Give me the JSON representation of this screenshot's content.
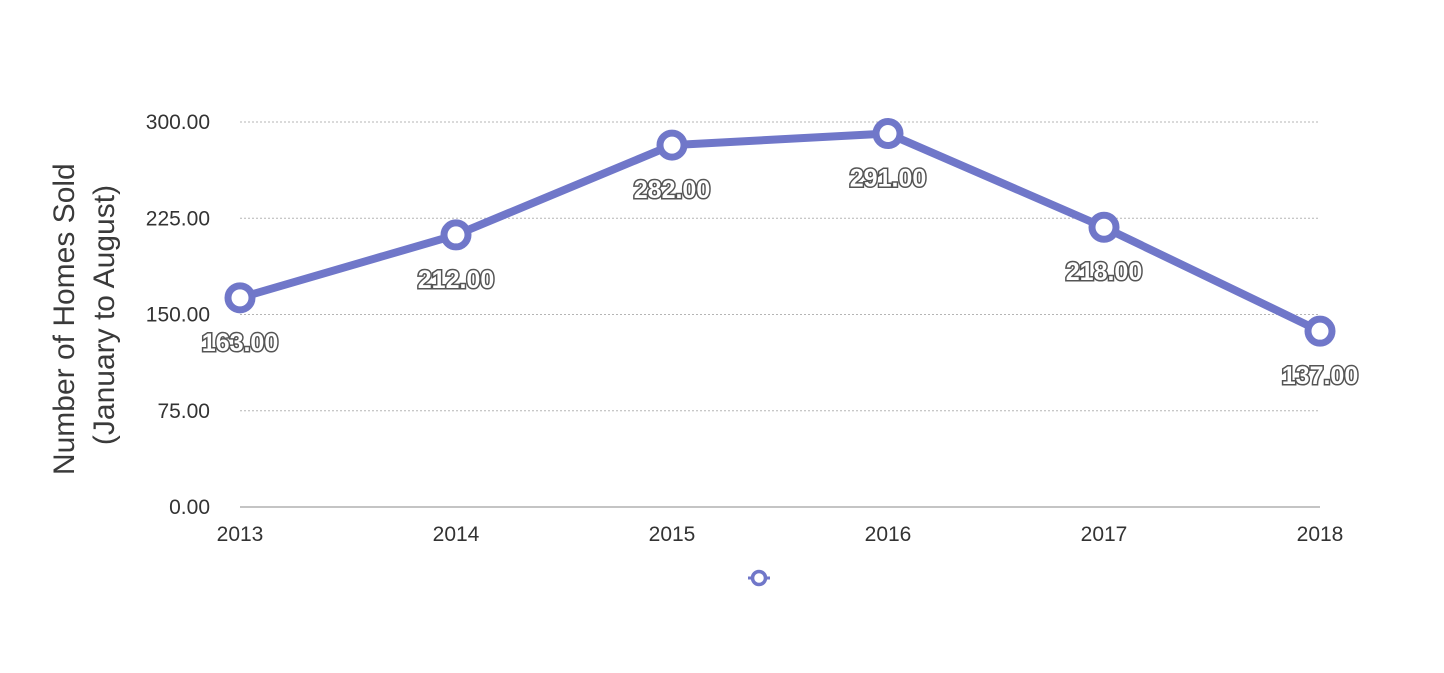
{
  "chart_data": {
    "type": "line",
    "title": "",
    "xlabel": "",
    "ylabel_lines": [
      "Number of Homes Sold",
      "(January to August)"
    ],
    "categories": [
      "2013",
      "2014",
      "2015",
      "2016",
      "2017",
      "2018"
    ],
    "series": [
      {
        "values": [
          163,
          212,
          282,
          291,
          218,
          137
        ],
        "data_labels": [
          "163.00",
          "212.00",
          "282.00",
          "291.00",
          "218.00",
          "137.00"
        ],
        "color": "#7077c9"
      }
    ],
    "ylim": [
      0,
      300
    ],
    "yticks": [
      0,
      75,
      150,
      225,
      300
    ],
    "ytick_labels": [
      "0.00",
      "75.00",
      "150.00",
      "225.00",
      "300.00"
    ],
    "grid": true,
    "legend": "bottom-center"
  }
}
